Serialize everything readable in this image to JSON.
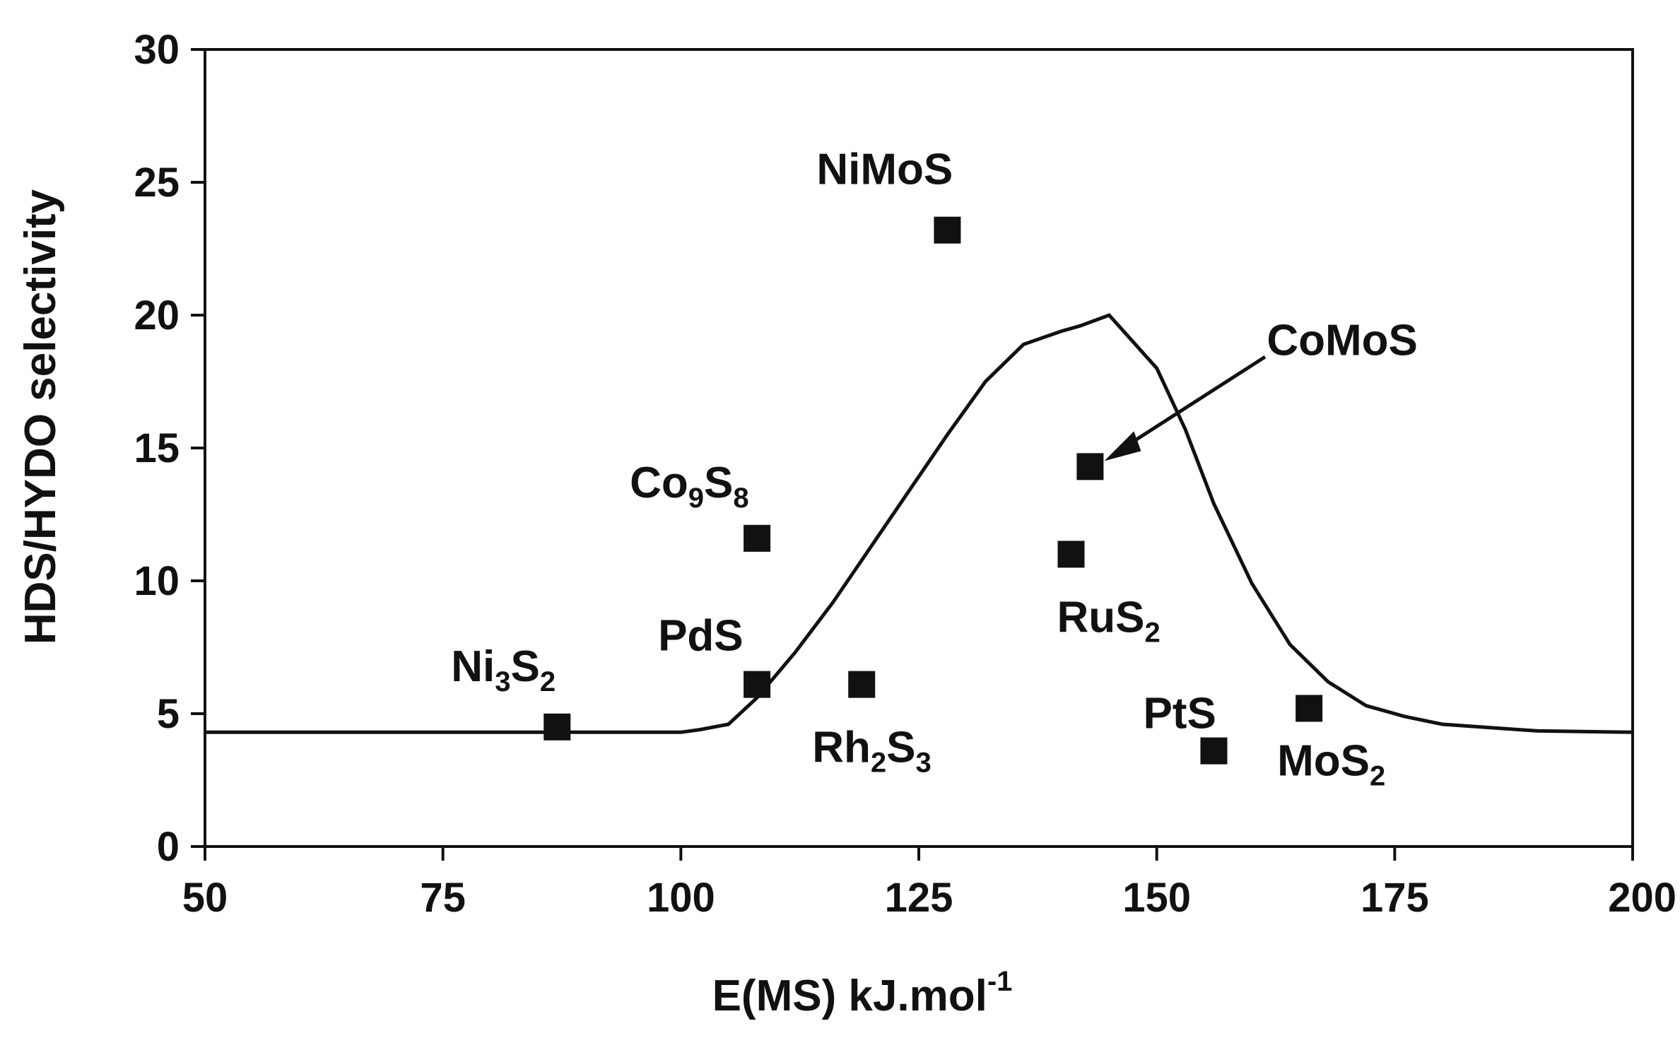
{
  "chart_data": {
    "type": "scatter",
    "title": "",
    "xlabel": "E(MS) kJ.mol",
    "xlabel_sup": "-1",
    "ylabel": "HDS/HYDO selectivity",
    "xlim": [
      50,
      200
    ],
    "ylim": [
      0,
      30
    ],
    "xticks": [
      "50",
      "75",
      "100",
      "125",
      "150",
      "175",
      "200"
    ],
    "yticks": [
      "0",
      "5",
      "10",
      "15",
      "20",
      "25",
      "30"
    ],
    "grid": false,
    "legend": "none",
    "points": [
      {
        "label": "Ni",
        "sub1": "3",
        "label2": "S",
        "sub2": "2",
        "x": 87,
        "y": 4.5
      },
      {
        "label": "Co",
        "sub1": "9",
        "label2": "S",
        "sub2": "8",
        "x": 108,
        "y": 11.6
      },
      {
        "label": "PdS",
        "sub1": "",
        "label2": "",
        "sub2": "",
        "x": 108,
        "y": 6.1
      },
      {
        "label": "Rh",
        "sub1": "2",
        "label2": "S",
        "sub2": "3",
        "x": 119,
        "y": 6.1
      },
      {
        "label": "NiMoS",
        "sub1": "",
        "label2": "",
        "sub2": "",
        "x": 128,
        "y": 23.2
      },
      {
        "label": "RuS",
        "sub1": "2",
        "label2": "",
        "sub2": "",
        "x": 141,
        "y": 11
      },
      {
        "label": "CoMoS",
        "sub1": "",
        "label2": "",
        "sub2": "",
        "x": 143,
        "y": 14.3
      },
      {
        "label": "PtS",
        "sub1": "",
        "label2": "",
        "sub2": "",
        "x": 156,
        "y": 3.6
      },
      {
        "label": "MoS",
        "sub1": "2",
        "label2": "",
        "sub2": "",
        "x": 166,
        "y": 5.2
      }
    ],
    "curve": {
      "x": [
        50,
        100,
        102,
        105,
        108,
        112,
        116,
        120,
        124,
        128,
        132,
        136,
        140,
        142,
        145,
        147,
        150,
        153,
        156,
        160,
        164,
        168,
        172,
        176,
        180,
        190,
        200
      ],
      "y": [
        4.3,
        4.3,
        4.4,
        4.6,
        5.6,
        7.3,
        9.2,
        11.3,
        13.4,
        15.5,
        17.5,
        18.9,
        19.4,
        19.6,
        20.0,
        19.2,
        18.0,
        15.7,
        12.9,
        9.9,
        7.6,
        6.2,
        5.3,
        4.9,
        4.6,
        4.35,
        4.3
      ]
    }
  }
}
